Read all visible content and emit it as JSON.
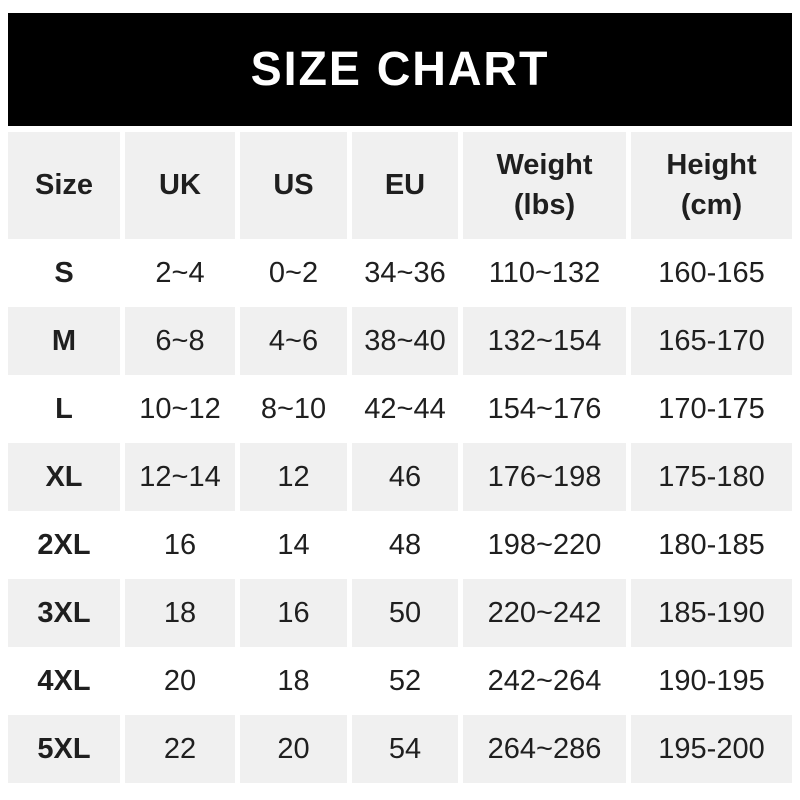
{
  "banner": {
    "title": "SIZE CHART",
    "background_color": "#000000",
    "text_color": "#ffffff"
  },
  "table": {
    "headers": [
      "Size",
      "UK",
      "US",
      "EU",
      "Weight\n(lbs)",
      "Height\n(cm)"
    ],
    "rows": [
      {
        "cells": [
          "S",
          "2~4",
          "0~2",
          "34~36",
          "110~132",
          "160-165"
        ]
      },
      {
        "cells": [
          "M",
          "6~8",
          "4~6",
          "38~40",
          "132~154",
          "165-170"
        ]
      },
      {
        "cells": [
          "L",
          "10~12",
          "8~10",
          "42~44",
          "154~176",
          "170-175"
        ]
      },
      {
        "cells": [
          "XL",
          "12~14",
          "12",
          "46",
          "176~198",
          "175-180"
        ]
      },
      {
        "cells": [
          "2XL",
          "16",
          "14",
          "48",
          "198~220",
          "180-185"
        ]
      },
      {
        "cells": [
          "3XL",
          "18",
          "16",
          "50",
          "220~242",
          "185-190"
        ]
      },
      {
        "cells": [
          "4XL",
          "20",
          "18",
          "52",
          "242~264",
          "190-195"
        ]
      },
      {
        "cells": [
          "5XL",
          "22",
          "20",
          "54",
          "264~286",
          "195-200"
        ]
      }
    ],
    "stripe_color": "#f0f0f0",
    "text_color": "#1f1f1f"
  },
  "chart_data": {
    "type": "table",
    "title": "SIZE CHART",
    "columns": [
      "Size",
      "UK",
      "US",
      "EU",
      "Weight (lbs)",
      "Height (cm)"
    ],
    "rows": [
      [
        "S",
        "2~4",
        "0~2",
        "34~36",
        "110~132",
        "160-165"
      ],
      [
        "M",
        "6~8",
        "4~6",
        "38~40",
        "132~154",
        "165-170"
      ],
      [
        "L",
        "10~12",
        "8~10",
        "42~44",
        "154~176",
        "170-175"
      ],
      [
        "XL",
        "12~14",
        "12",
        "46",
        "176~198",
        "175-180"
      ],
      [
        "2XL",
        "16",
        "14",
        "48",
        "198~220",
        "180-185"
      ],
      [
        "3XL",
        "18",
        "16",
        "50",
        "220~242",
        "185-190"
      ],
      [
        "4XL",
        "20",
        "18",
        "52",
        "242~264",
        "190-195"
      ],
      [
        "5XL",
        "22",
        "20",
        "54",
        "264~286",
        "195-200"
      ]
    ]
  }
}
